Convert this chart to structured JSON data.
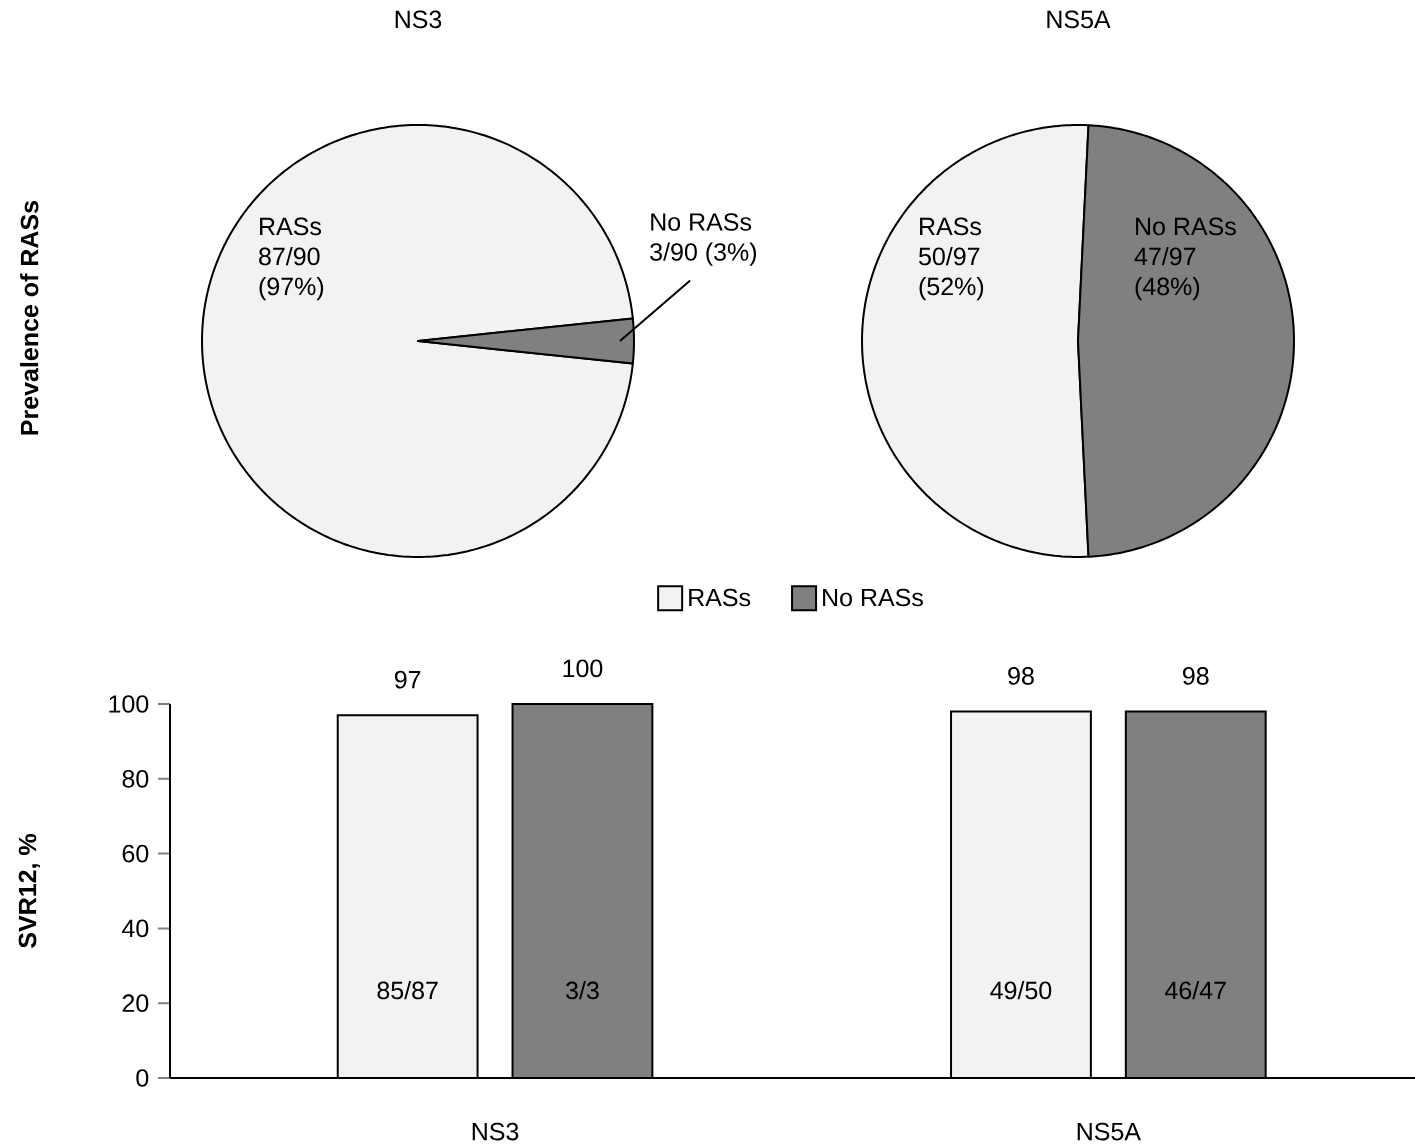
{
  "chart_data": [
    {
      "type": "pie",
      "title": "NS3",
      "ylabel": "Prevalence of RASs",
      "categories": [
        "RASs",
        "No RASs"
      ],
      "values": [
        87,
        3
      ],
      "colors": [
        "#f2f2f2",
        "#808080"
      ],
      "value_labels": [
        "87/90 (97%)",
        "3/90 (3%)"
      ]
    },
    {
      "type": "pie",
      "title": "NS5A",
      "categories": [
        "RASs",
        "No RASs"
      ],
      "values": [
        50,
        47
      ],
      "colors": [
        "#f2f2f2",
        "#808080"
      ],
      "value_labels": [
        "50/97 (52%)",
        "47/97 (48%)"
      ]
    },
    {
      "type": "bar",
      "ylabel": "SVR12, %",
      "categories": [
        "NS3",
        "NS5A"
      ],
      "series": [
        {
          "name": "RASs",
          "color": "#f2f2f2",
          "values": [
            97,
            98
          ]
        },
        {
          "name": "No RASs",
          "color": "#808080",
          "values": [
            100,
            98
          ]
        }
      ],
      "annotations": [
        "85/87",
        "3/3",
        "49/50",
        "46/47"
      ],
      "ylim": [
        0,
        100
      ],
      "yticks": [
        0,
        20,
        40,
        60,
        80,
        100
      ],
      "data_labels": true,
      "legend": "top",
      "grid": false
    }
  ]
}
